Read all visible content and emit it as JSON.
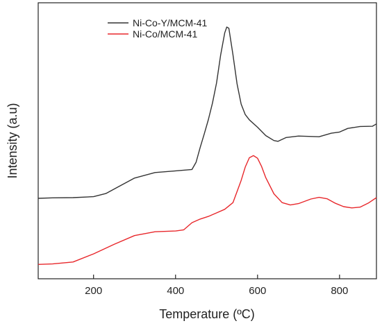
{
  "chart_data": {
    "type": "line",
    "xlabel": "Temperature (ºC)",
    "ylabel": "Intensity (a.u)",
    "xlim": [
      65,
      890
    ],
    "ylim": [
      0,
      1
    ],
    "x_ticks": [
      200,
      400,
      600,
      800
    ],
    "y_ticks": [],
    "grid": false,
    "legend_position": "top-left",
    "series": [
      {
        "name": "Ni-Co-Y/MCM-41",
        "color": "#333333",
        "points": [
          [
            65,
            0.282
          ],
          [
            100,
            0.284
          ],
          [
            150,
            0.285
          ],
          [
            200,
            0.289
          ],
          [
            230,
            0.302
          ],
          [
            260,
            0.33
          ],
          [
            300,
            0.367
          ],
          [
            350,
            0.39
          ],
          [
            400,
            0.397
          ],
          [
            440,
            0.403
          ],
          [
            450,
            0.433
          ],
          [
            460,
            0.495
          ],
          [
            470,
            0.552
          ],
          [
            480,
            0.612
          ],
          [
            490,
            0.681
          ],
          [
            500,
            0.766
          ],
          [
            510,
            0.883
          ],
          [
            520,
            0.976
          ],
          [
            525,
            1.0
          ],
          [
            530,
            0.995
          ],
          [
            540,
            0.884
          ],
          [
            550,
            0.762
          ],
          [
            560,
            0.677
          ],
          [
            570,
            0.633
          ],
          [
            580,
            0.611
          ],
          [
            600,
            0.58
          ],
          [
            620,
            0.545
          ],
          [
            640,
            0.524
          ],
          [
            650,
            0.521
          ],
          [
            670,
            0.537
          ],
          [
            700,
            0.543
          ],
          [
            750,
            0.54
          ],
          [
            780,
            0.555
          ],
          [
            800,
            0.56
          ],
          [
            820,
            0.575
          ],
          [
            850,
            0.583
          ],
          [
            880,
            0.584
          ],
          [
            890,
            0.594
          ]
        ]
      },
      {
        "name": "Ni-Co/MCM-41",
        "color": "#e8272b",
        "points": [
          [
            65,
            0.005
          ],
          [
            100,
            0.007
          ],
          [
            150,
            0.015
          ],
          [
            200,
            0.049
          ],
          [
            250,
            0.089
          ],
          [
            300,
            0.126
          ],
          [
            350,
            0.142
          ],
          [
            400,
            0.145
          ],
          [
            420,
            0.15
          ],
          [
            440,
            0.18
          ],
          [
            460,
            0.195
          ],
          [
            480,
            0.206
          ],
          [
            500,
            0.221
          ],
          [
            520,
            0.236
          ],
          [
            540,
            0.264
          ],
          [
            560,
            0.357
          ],
          [
            570,
            0.413
          ],
          [
            580,
            0.452
          ],
          [
            590,
            0.461
          ],
          [
            600,
            0.45
          ],
          [
            610,
            0.415
          ],
          [
            620,
            0.369
          ],
          [
            640,
            0.301
          ],
          [
            660,
            0.264
          ],
          [
            680,
            0.254
          ],
          [
            700,
            0.26
          ],
          [
            730,
            0.279
          ],
          [
            750,
            0.286
          ],
          [
            770,
            0.28
          ],
          [
            790,
            0.261
          ],
          [
            810,
            0.247
          ],
          [
            830,
            0.242
          ],
          [
            850,
            0.245
          ],
          [
            870,
            0.262
          ],
          [
            890,
            0.285
          ]
        ]
      }
    ]
  }
}
